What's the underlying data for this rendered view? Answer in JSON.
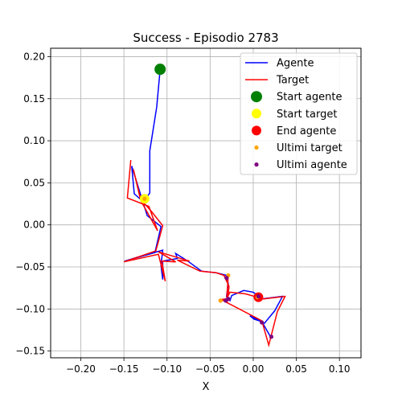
{
  "chart_data": {
    "type": "line",
    "title": "Success - Episodio 2783",
    "xlabel": "X",
    "ylabel": "",
    "xlim": [
      -0.235,
      0.125
    ],
    "ylim": [
      -0.158,
      0.21
    ],
    "xticks": [
      -0.2,
      -0.15,
      -0.1,
      -0.05,
      0.0,
      0.05,
      0.1
    ],
    "yticks": [
      -0.15,
      -0.1,
      -0.05,
      0.0,
      0.05,
      0.1,
      0.15,
      0.2
    ],
    "xtick_labels": [
      "−0.20",
      "−0.15",
      "−0.10",
      "−0.05",
      "0.00",
      "0.05",
      "0.10"
    ],
    "ytick_labels": [
      "−0.15",
      "−0.10",
      "−0.05",
      "0.00",
      "0.05",
      "0.10",
      "0.15",
      "0.20"
    ],
    "grid": true,
    "legend_position": "top-right",
    "series": [
      {
        "name": "Agente",
        "kind": "line",
        "color": "#0000ff",
        "points": [
          [
            -0.108,
            0.185
          ],
          [
            -0.112,
            0.14
          ],
          [
            -0.12,
            0.088
          ],
          [
            -0.12,
            0.038
          ],
          [
            -0.127,
            0.027
          ],
          [
            -0.138,
            0.037
          ],
          [
            -0.141,
            0.07
          ],
          [
            -0.123,
            0.011
          ],
          [
            -0.107,
            -0.002
          ],
          [
            -0.114,
            -0.033
          ],
          [
            -0.149,
            -0.043
          ],
          [
            -0.133,
            -0.038
          ],
          [
            -0.105,
            -0.03
          ],
          [
            -0.107,
            -0.048
          ],
          [
            -0.105,
            -0.065
          ],
          [
            -0.105,
            -0.043
          ],
          [
            -0.088,
            -0.04
          ],
          [
            -0.09,
            -0.034
          ],
          [
            -0.076,
            -0.043
          ],
          [
            -0.06,
            -0.055
          ],
          [
            -0.043,
            -0.057
          ],
          [
            -0.031,
            -0.06
          ],
          [
            -0.029,
            -0.07
          ],
          [
            -0.031,
            -0.085
          ],
          [
            -0.027,
            -0.09
          ],
          [
            -0.025,
            -0.084
          ],
          [
            -0.011,
            -0.078
          ],
          [
            0.0,
            -0.08
          ],
          [
            0.01,
            -0.088
          ],
          [
            0.034,
            -0.085
          ],
          [
            0.025,
            -0.102
          ],
          [
            0.013,
            -0.117
          ],
          [
            -0.004,
            -0.108
          ],
          [
            0.001,
            -0.112
          ],
          [
            0.01,
            -0.115
          ],
          [
            0.02,
            -0.133
          ]
        ]
      },
      {
        "name": "Target",
        "kind": "line",
        "color": "#ff0000",
        "points": [
          [
            -0.142,
            0.077
          ],
          [
            -0.146,
            0.032
          ],
          [
            -0.121,
            0.022
          ],
          [
            -0.111,
            -0.007
          ],
          [
            -0.13,
            0.028
          ],
          [
            -0.139,
            0.066
          ],
          [
            -0.131,
            0.031
          ],
          [
            -0.118,
            0.016
          ],
          [
            -0.105,
            -0.001
          ],
          [
            -0.113,
            -0.031
          ],
          [
            -0.15,
            -0.044
          ],
          [
            -0.11,
            -0.035
          ],
          [
            -0.102,
            -0.067
          ],
          [
            -0.106,
            -0.043
          ],
          [
            -0.09,
            -0.044
          ],
          [
            -0.11,
            -0.032
          ],
          [
            -0.074,
            -0.043
          ],
          [
            -0.088,
            -0.042
          ],
          [
            -0.062,
            -0.055
          ],
          [
            -0.043,
            -0.057
          ],
          [
            -0.034,
            -0.06
          ],
          [
            -0.028,
            -0.073
          ],
          [
            -0.03,
            -0.091
          ],
          [
            -0.04,
            -0.089
          ],
          [
            -0.031,
            -0.088
          ],
          [
            -0.027,
            -0.08
          ],
          [
            -0.009,
            -0.082
          ],
          [
            0.012,
            -0.088
          ],
          [
            0.037,
            -0.085
          ],
          [
            0.028,
            -0.103
          ],
          [
            0.018,
            -0.143
          ],
          [
            0.01,
            -0.114
          ],
          [
            -0.031,
            -0.092
          ],
          [
            -0.029,
            -0.06
          ]
        ]
      },
      {
        "name": "Start agente",
        "kind": "scatter",
        "color": "#008000",
        "marker_size": 7,
        "points": [
          [
            -0.108,
            0.185
          ]
        ]
      },
      {
        "name": "Start target",
        "kind": "scatter",
        "color": "#ffff00",
        "marker_size": 6,
        "points": [
          [
            -0.126,
            0.031
          ]
        ]
      },
      {
        "name": "End agente",
        "kind": "scatter",
        "color": "#ff0000",
        "marker_size": 6,
        "points": [
          [
            0.006,
            -0.086
          ]
        ]
      },
      {
        "name": "Ultimi target",
        "kind": "scatter",
        "color": "#ffa500",
        "marker_size": 2.6,
        "points": [
          [
            -0.029,
            -0.06
          ],
          [
            -0.038,
            -0.09
          ],
          [
            0.005,
            -0.086
          ],
          [
            -0.126,
            0.031
          ],
          [
            0.01,
            -0.116
          ]
        ]
      },
      {
        "name": "Ultimi agente",
        "kind": "scatter",
        "color": "#800080",
        "marker_size": 2.6,
        "points": [
          [
            -0.031,
            -0.063
          ],
          [
            -0.032,
            -0.09
          ],
          [
            0.006,
            -0.085
          ],
          [
            -0.029,
            -0.088
          ],
          [
            0.01,
            -0.116
          ],
          [
            0.021,
            -0.133
          ]
        ]
      }
    ]
  }
}
